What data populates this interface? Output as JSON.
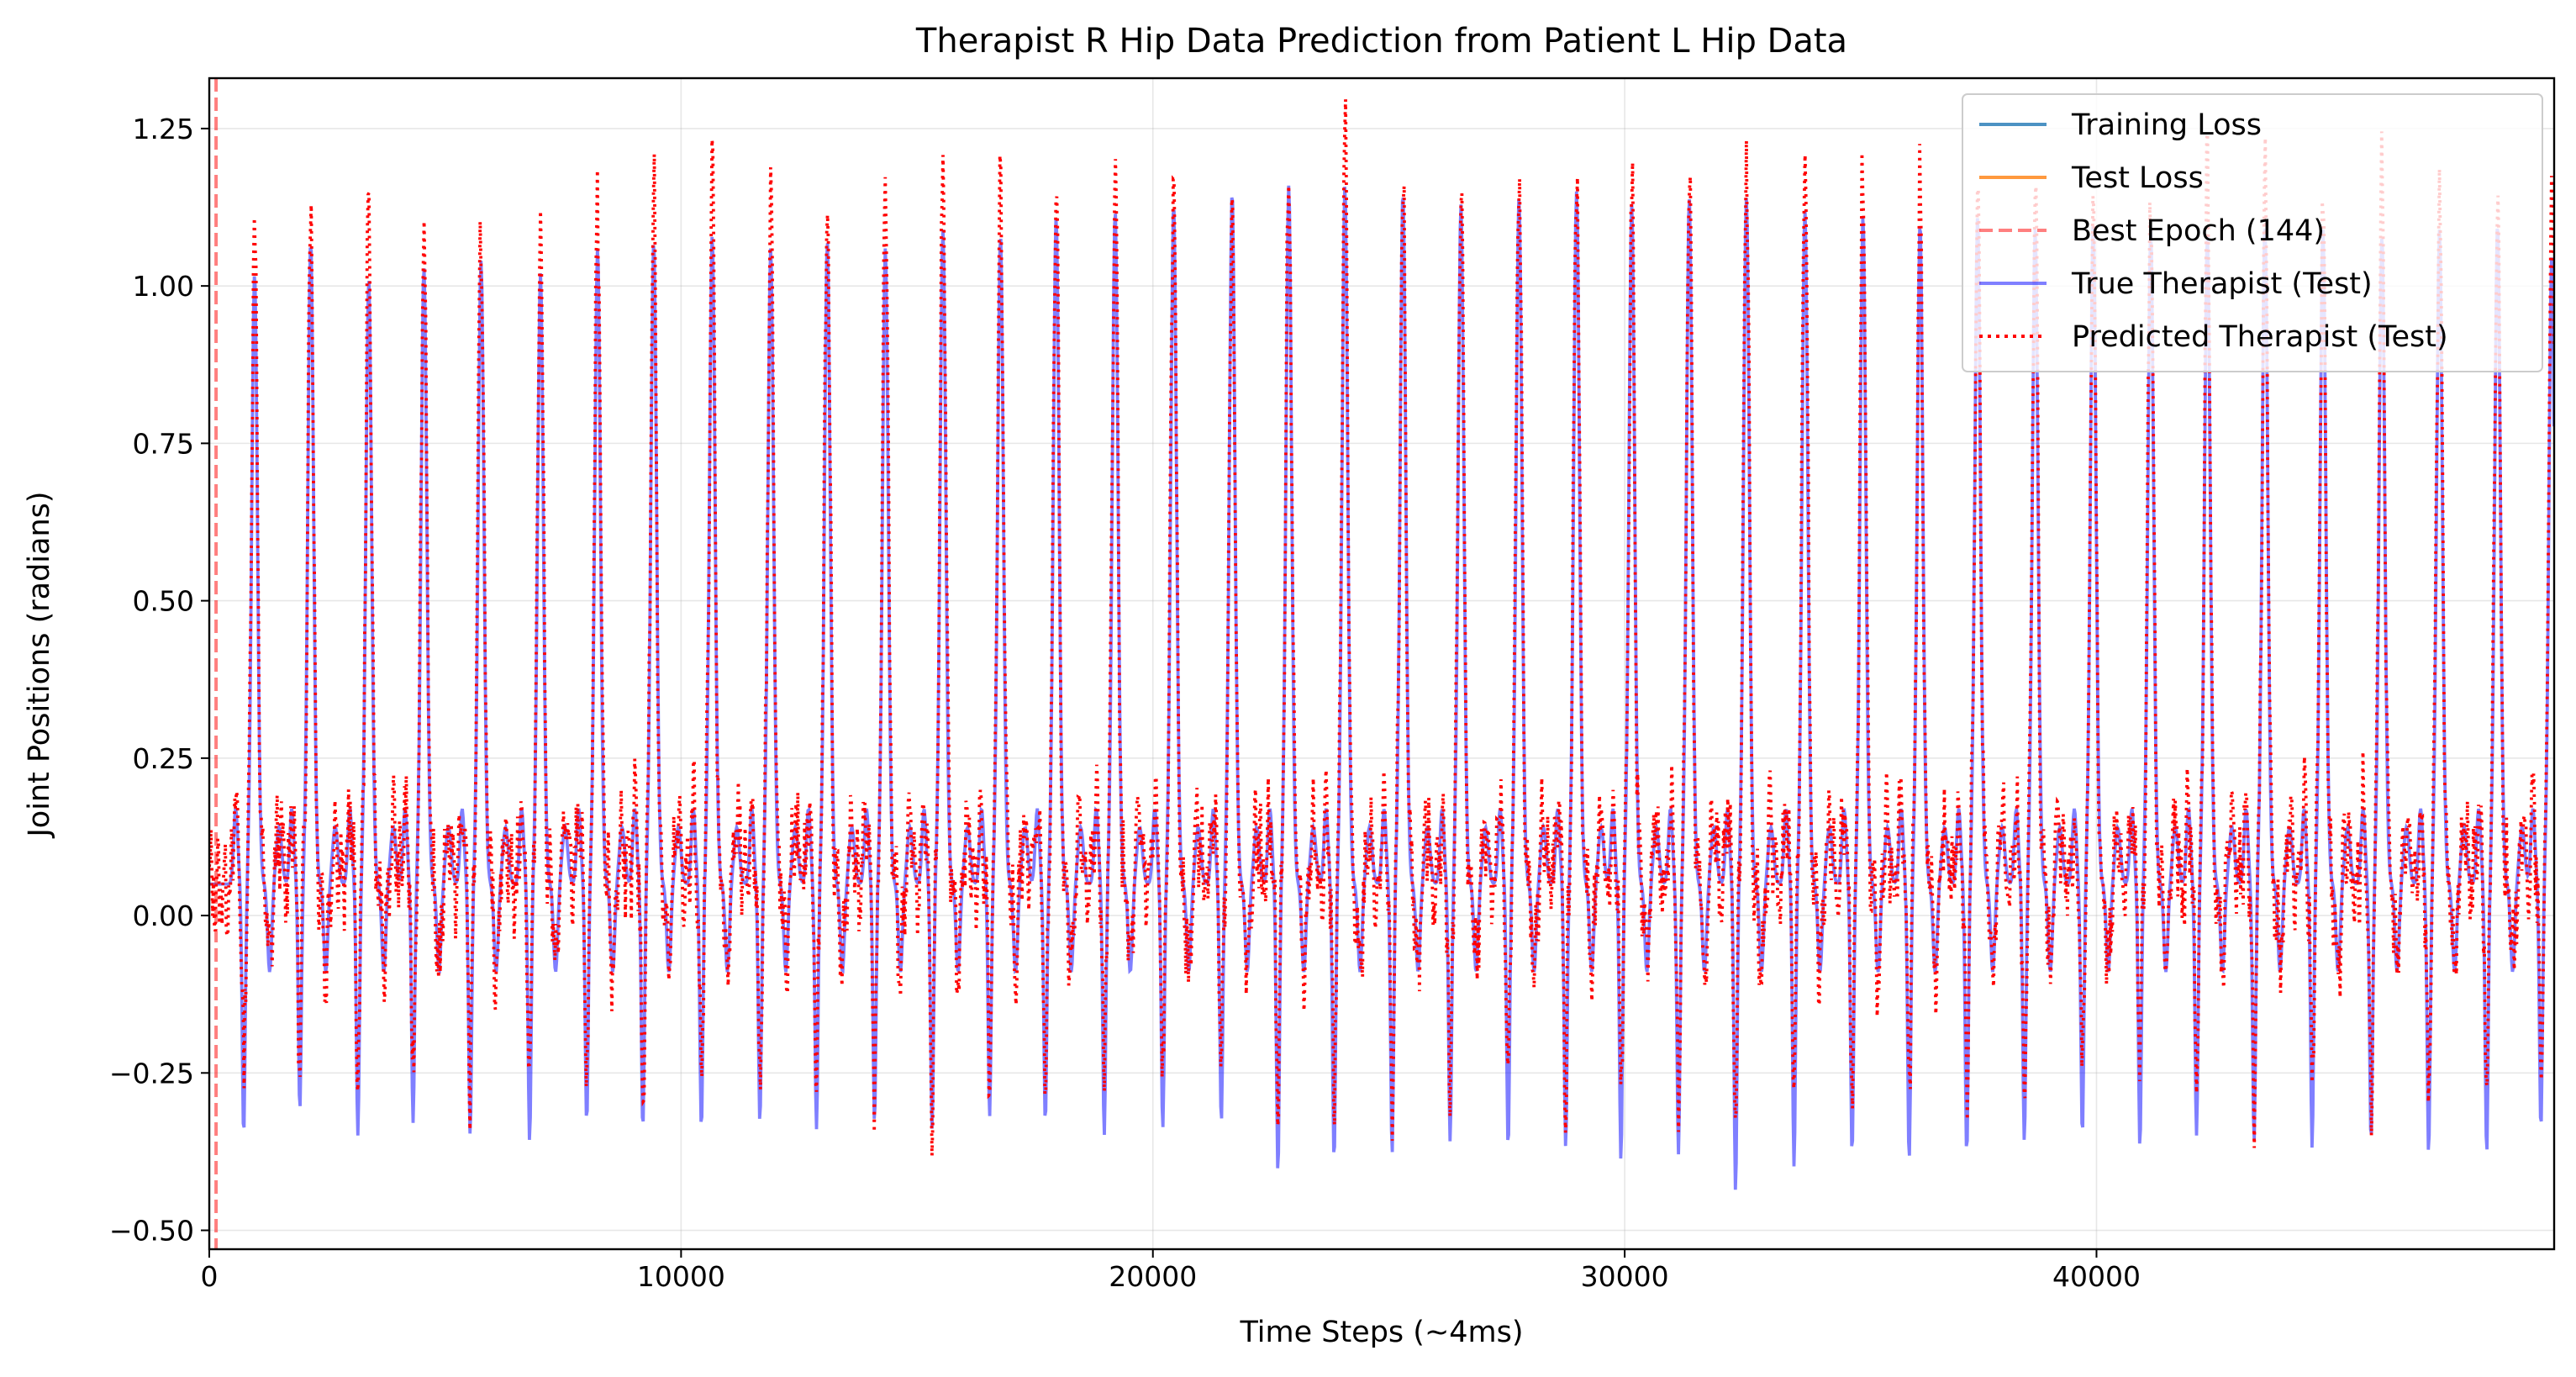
{
  "chart_data": {
    "type": "line",
    "title": "Therapist R Hip Data Prediction from Patient L Hip Data",
    "xlabel": "Time Steps (~4ms)",
    "ylabel": "Joint Positions (radians)",
    "xlim": [
      0,
      49700
    ],
    "ylim": [
      -0.53,
      1.33
    ],
    "x_ticks": [
      0,
      10000,
      20000,
      30000,
      40000
    ],
    "x_tick_labels": [
      "0",
      "10000",
      "20000",
      "30000",
      "40000"
    ],
    "y_ticks": [
      -0.5,
      -0.25,
      0.0,
      0.25,
      0.5,
      0.75,
      1.0,
      1.25
    ],
    "y_tick_labels": [
      "−0.50",
      "−0.25",
      "0.00",
      "0.25",
      "0.50",
      "0.75",
      "1.00",
      "1.25"
    ],
    "grid": true,
    "legend_position": "top-right",
    "legend": [
      {
        "label": "Training Loss",
        "color": "#1f77b4",
        "style": "solid",
        "alpha": 0.8
      },
      {
        "label": "Test Loss",
        "color": "#ff7f0e",
        "style": "solid",
        "alpha": 0.8
      },
      {
        "label": "Best Epoch (144)",
        "color": "#ff0000",
        "style": "dashed",
        "alpha": 0.5
      },
      {
        "label": "True Therapist (Test)",
        "color": "#0000ff",
        "style": "solid",
        "alpha": 0.5
      },
      {
        "label": "Predicted Therapist (Test)",
        "color": "#ff0000",
        "style": "dotted",
        "alpha": 1.0
      }
    ],
    "vline": {
      "x": 144,
      "color": "#ff0000",
      "style": "dashed",
      "alpha": 0.5
    },
    "cycle": {
      "period_approx": 1230,
      "peak_x": [
        960,
        2150,
        3380,
        4550,
        5760,
        7020,
        8230,
        9420,
        10660,
        11900,
        13100,
        14330,
        15550,
        16770,
        17950,
        19200,
        20440,
        21680,
        22880,
        24070,
        25300,
        26530,
        27760,
        28980,
        30150,
        31370,
        32580,
        33820,
        35050,
        36260,
        37480,
        38700,
        39930,
        41150,
        42350,
        43570,
        44800,
        46050,
        47270,
        48500,
        49650
      ],
      "true_peak_y": [
        1.02,
        1.07,
        1.01,
        1.03,
        1.04,
        1.02,
        1.06,
        1.07,
        1.08,
        1.06,
        1.07,
        1.06,
        1.09,
        1.08,
        1.11,
        1.12,
        1.13,
        1.15,
        1.16,
        1.16,
        1.15,
        1.13,
        1.14,
        1.15,
        1.13,
        1.14,
        1.14,
        1.12,
        1.11,
        1.1,
        1.11,
        1.09,
        1.1,
        1.09,
        1.08,
        1.1,
        1.09,
        1.08,
        1.09,
        1.1,
        1.05
      ],
      "predicted_peak_y": [
        1.12,
        1.14,
        1.12,
        1.11,
        1.11,
        1.12,
        1.13,
        1.15,
        1.17,
        1.16,
        1.14,
        1.16,
        1.18,
        1.13,
        1.19,
        1.18,
        1.17,
        1.15,
        1.2,
        1.24,
        1.16,
        1.18,
        1.19,
        1.21,
        1.15,
        1.17,
        1.21,
        1.23,
        1.21,
        1.15,
        1.17,
        1.16,
        1.13,
        1.15,
        1.17,
        1.15,
        1.12,
        1.17,
        1.14,
        1.15,
        1.18
      ],
      "true_trough_y": [
        -0.35,
        -0.31,
        -0.35,
        -0.33,
        -0.35,
        -0.36,
        -0.33,
        -0.34,
        -0.34,
        -0.33,
        -0.34,
        -0.33,
        -0.34,
        -0.32,
        -0.33,
        -0.35,
        -0.34,
        -0.33,
        -0.41,
        -0.39,
        -0.38,
        -0.36,
        -0.37,
        -0.37,
        -0.39,
        -0.38,
        -0.44,
        -0.4,
        -0.38,
        -0.39,
        -0.38,
        -0.36,
        -0.35,
        -0.37,
        -0.35,
        -0.36,
        -0.37,
        -0.36,
        -0.38,
        -0.38,
        -0.34
      ],
      "predicted_trough_y": [
        -0.26,
        -0.25,
        -0.28,
        -0.27,
        -0.28,
        -0.29,
        -0.28,
        -0.31,
        -0.3,
        -0.29,
        -0.29,
        -0.3,
        -0.3,
        -0.27,
        -0.28,
        -0.29,
        -0.28,
        -0.24,
        -0.34,
        -0.3,
        -0.34,
        -0.31,
        -0.3,
        -0.31,
        -0.28,
        -0.33,
        -0.37,
        -0.31,
        -0.28,
        -0.26,
        -0.29,
        -0.3,
        -0.28,
        -0.27,
        -0.28,
        -0.3,
        -0.3,
        -0.31,
        -0.31,
        -0.3,
        -0.28
      ]
    }
  }
}
